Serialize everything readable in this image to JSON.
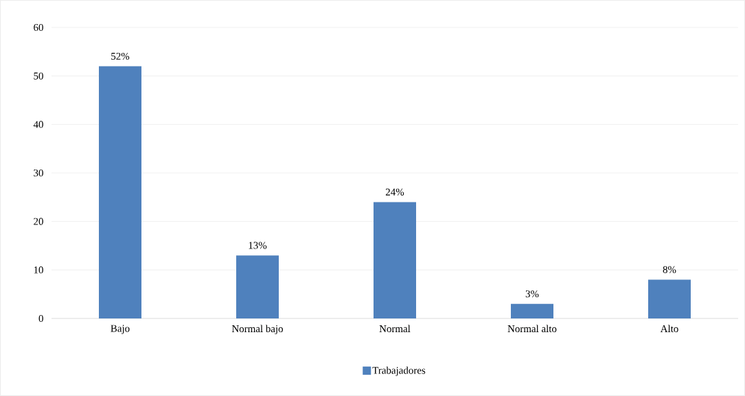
{
  "chart_data": {
    "type": "bar",
    "categories": [
      "Bajo",
      "Normal bajo",
      "Normal",
      "Normal alto",
      "Alto"
    ],
    "series": [
      {
        "name": "Trabajadores",
        "color": "#4f81bd",
        "values": [
          52,
          13,
          24,
          3,
          8
        ],
        "value_labels": [
          "52%",
          "13%",
          "24%",
          "3%",
          "8%"
        ]
      }
    ],
    "ylim": [
      0,
      60
    ],
    "yticks": [
      0,
      10,
      20,
      30,
      40,
      50,
      60
    ],
    "grid": "y",
    "legend": "bottom"
  }
}
